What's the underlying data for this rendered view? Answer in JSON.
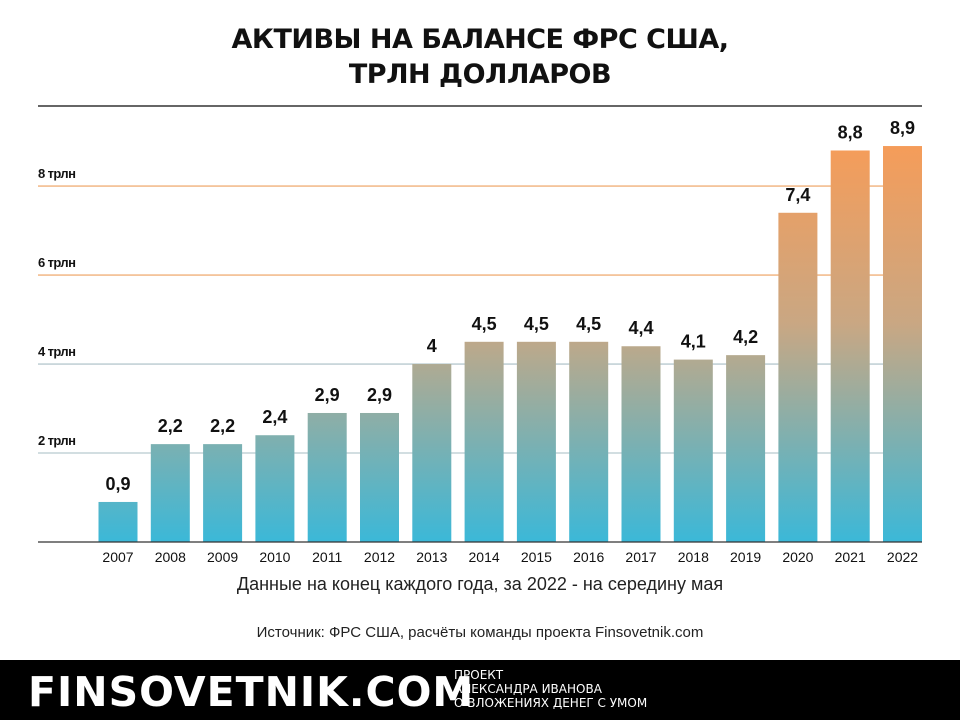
{
  "header": {
    "title_line1": "АКТИВЫ НА БАЛАНСЕ ФРС США,",
    "title_line2": "ТРЛН ДОЛЛАРОВ"
  },
  "chart_data": {
    "type": "bar",
    "title": "АКТИВЫ НА БАЛАНСЕ ФРС США, ТРЛН ДОЛЛАРОВ",
    "categories": [
      "2007",
      "2008",
      "2009",
      "2010",
      "2011",
      "2012",
      "2013",
      "2014",
      "2015",
      "2016",
      "2017",
      "2018",
      "2019",
      "2020",
      "2021",
      "2022"
    ],
    "values": [
      0.9,
      2.2,
      2.2,
      2.4,
      2.9,
      2.9,
      4,
      4.5,
      4.5,
      4.5,
      4.4,
      4.1,
      4.2,
      7.4,
      8.8,
      8.9
    ],
    "value_labels": [
      "0,9",
      "2,2",
      "2,2",
      "2,4",
      "2,9",
      "2,9",
      "4",
      "4,5",
      "4,5",
      "4,5",
      "4,4",
      "4,1",
      "4,2",
      "7,4",
      "8,8",
      "8,9"
    ],
    "y_ticks": [
      2,
      4,
      6,
      8
    ],
    "y_tick_labels": [
      "2 трлн",
      "4 трлн",
      "6 трлн",
      "8 трлн"
    ],
    "ylim": [
      0,
      9.8
    ],
    "grid": true,
    "colors": {
      "low": "#3bb8d8",
      "mid": "#c9a783",
      "high": "#ff9a50",
      "grid": "#f1b17a",
      "axis": "#333333"
    },
    "xlabel": "Данные на конец каждого года, за 2022 - на середину мая"
  },
  "source": "Источник: ФРС США, расчёты команды проекта Finsovetnik.com",
  "footer": {
    "brand": "FINSOVETNIK.COM",
    "tagline": [
      "ПРОЕКТ",
      "АЛЕКСАНДРА ИВАНОВА",
      "О ВЛОЖЕНИЯХ ДЕНЕГ С УМОМ"
    ]
  }
}
